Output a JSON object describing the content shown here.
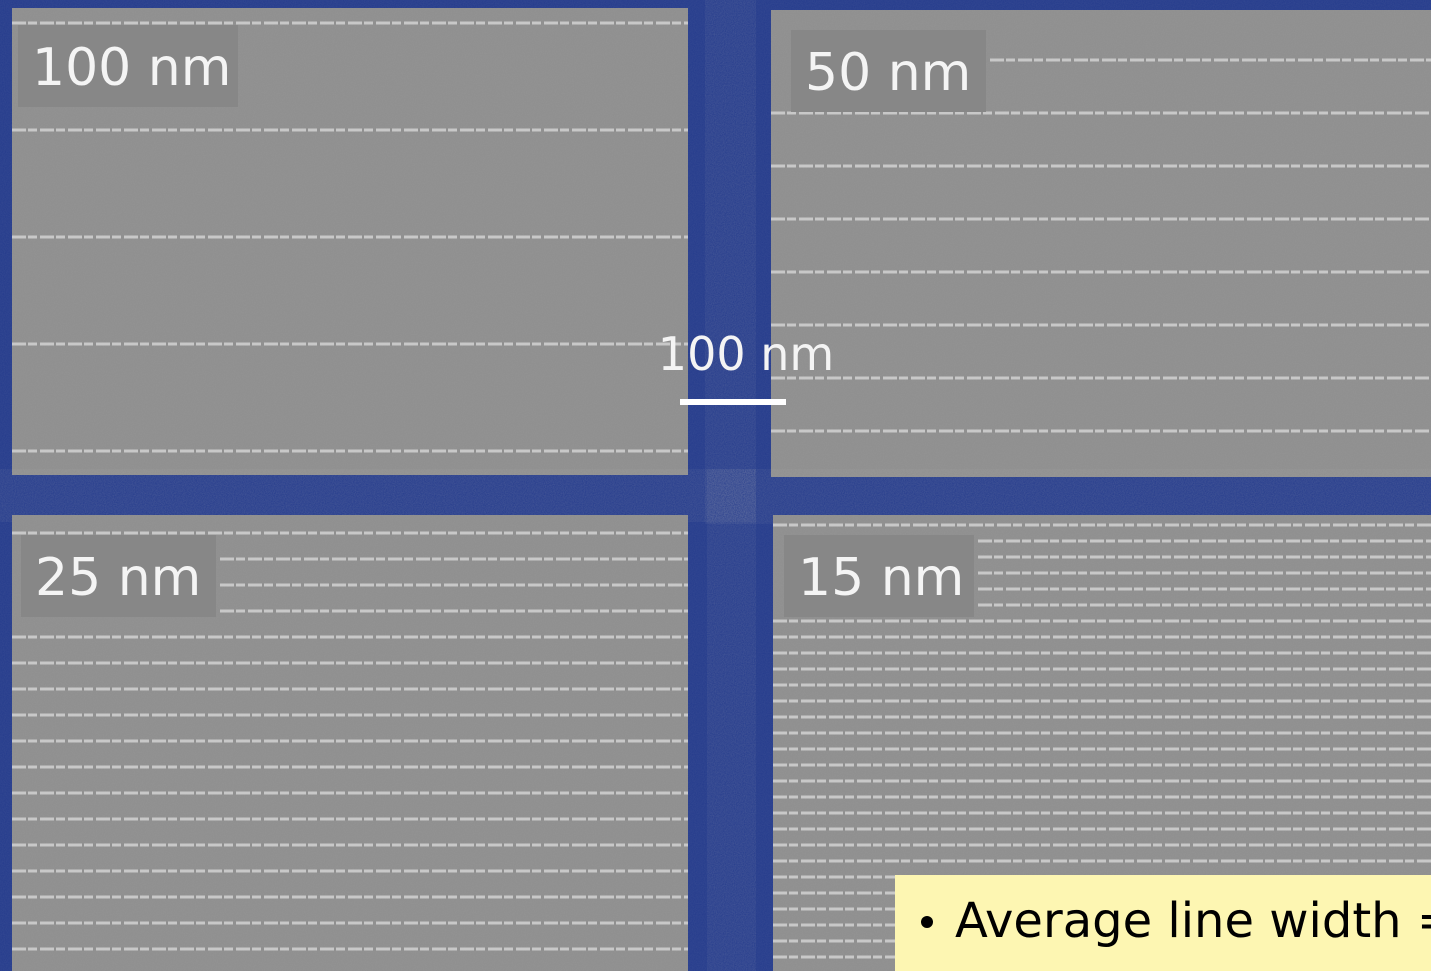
{
  "panels": [
    {
      "label": "100 nm"
    },
    {
      "label": "50 nm"
    },
    {
      "label": "25 nm"
    },
    {
      "label": "15 nm"
    }
  ],
  "scale_bar": {
    "label": "100 nm"
  },
  "callout": {
    "text": "Average line width ="
  }
}
